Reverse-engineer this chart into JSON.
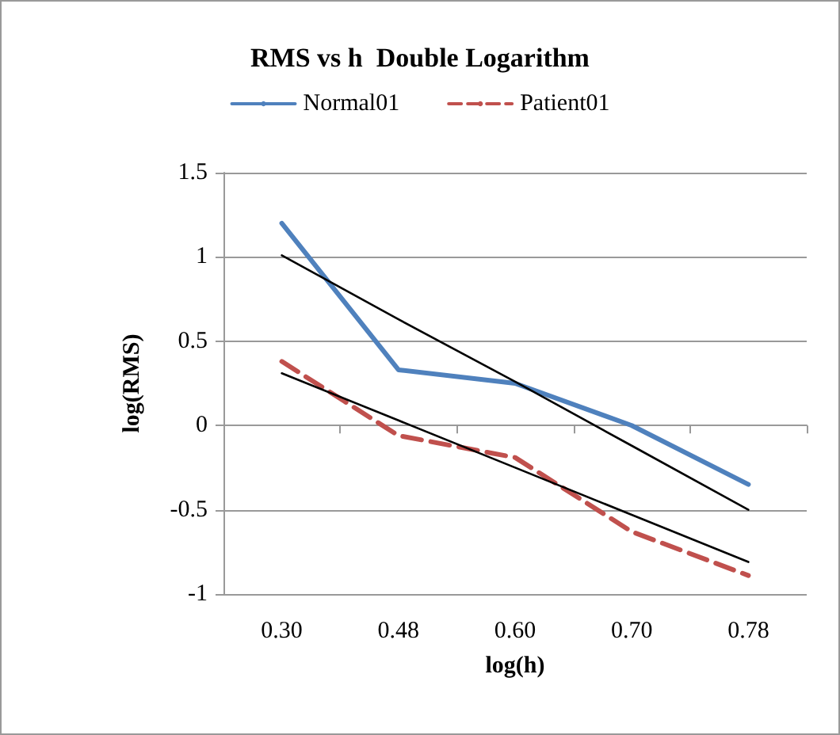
{
  "chart_data": {
    "type": "line",
    "title": "RMS vs h  Double Logarithm",
    "xlabel": "log(h)",
    "ylabel": "log(RMS)",
    "categories": [
      "0.30",
      "0.48",
      "0.60",
      "0.70",
      "0.78"
    ],
    "series": [
      {
        "name": "Normal01",
        "color": "#4f81bd",
        "values": [
          1.2,
          0.33,
          0.25,
          0,
          -0.35
        ],
        "line_style": "solid"
      },
      {
        "name": "Patient01",
        "color": "#c0504d",
        "values": [
          0.38,
          -0.06,
          -0.19,
          -0.63,
          -0.89
        ],
        "line_style": "dashed"
      },
      {
        "color": "#000000",
        "values": [
          1.01,
          0.63,
          0.26,
          -0.12,
          -0.5
        ],
        "line_style": "solid"
      },
      {
        "color": "#000000",
        "values": [
          0.31,
          0.03,
          -0.25,
          -0.53,
          -0.81
        ],
        "line_style": "solid"
      }
    ],
    "ylim": [
      -1,
      1.5
    ],
    "yticks": [
      -1,
      -0.5,
      0,
      0.5,
      1,
      1.5
    ],
    "grid": "y",
    "legend": "top",
    "marker": "none"
  }
}
